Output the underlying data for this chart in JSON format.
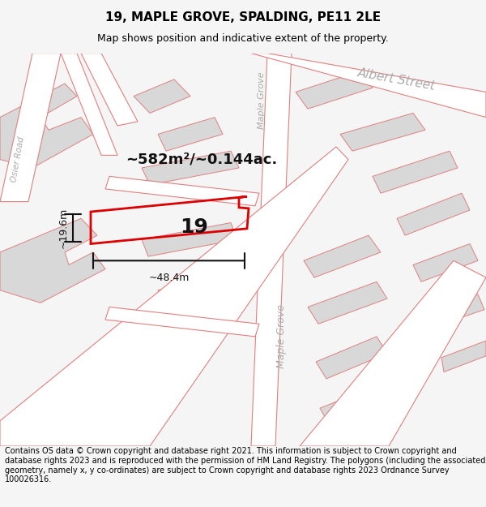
{
  "title": "19, MAPLE GROVE, SPALDING, PE11 2LE",
  "subtitle": "Map shows position and indicative extent of the property.",
  "area_text": "~582m²/~0.144ac.",
  "number_label": "19",
  "width_label": "~48.4m",
  "height_label": "~19.6m",
  "footer_text": "Contains OS data © Crown copyright and database right 2021. This information is subject to Crown copyright and database rights 2023 and is reproduced with the permission of HM Land Registry. The polygons (including the associated geometry, namely x, y co-ordinates) are subject to Crown copyright and database rights 2023 Ordnance Survey 100026316.",
  "map_bg": "#f0efef",
  "road_fill": "#ffffff",
  "road_stroke": "#e08080",
  "block_fill": "#d8d8d8",
  "block_stroke": "#e08080",
  "property_stroke": "#dd0000",
  "property_fill": "none",
  "dim_line_color": "#111111",
  "title_fontsize": 11,
  "subtitle_fontsize": 9,
  "footer_fontsize": 7,
  "label_color": "#bbbbbb",
  "road_label_size": 9
}
